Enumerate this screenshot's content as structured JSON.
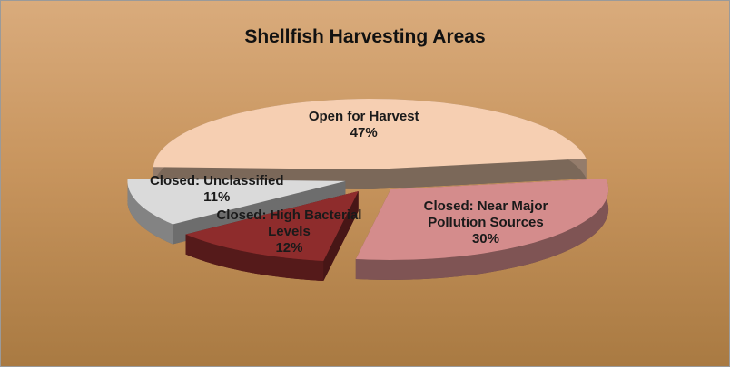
{
  "chart_data": {
    "type": "pie",
    "title": "Shellfish Harvesting Areas",
    "categories": [
      "Open for Harvest",
      "Closed: Near Major Pollution Sources",
      "Closed: High Bacterial Levels",
      "Closed: Unclassified"
    ],
    "values": [
      47,
      30,
      12,
      11
    ],
    "value_labels": [
      "47%",
      "30%",
      "12%",
      "11%"
    ],
    "colors": [
      "#f6cfb2",
      "#d48c8c",
      "#8e2c2c",
      "#dadada"
    ]
  }
}
